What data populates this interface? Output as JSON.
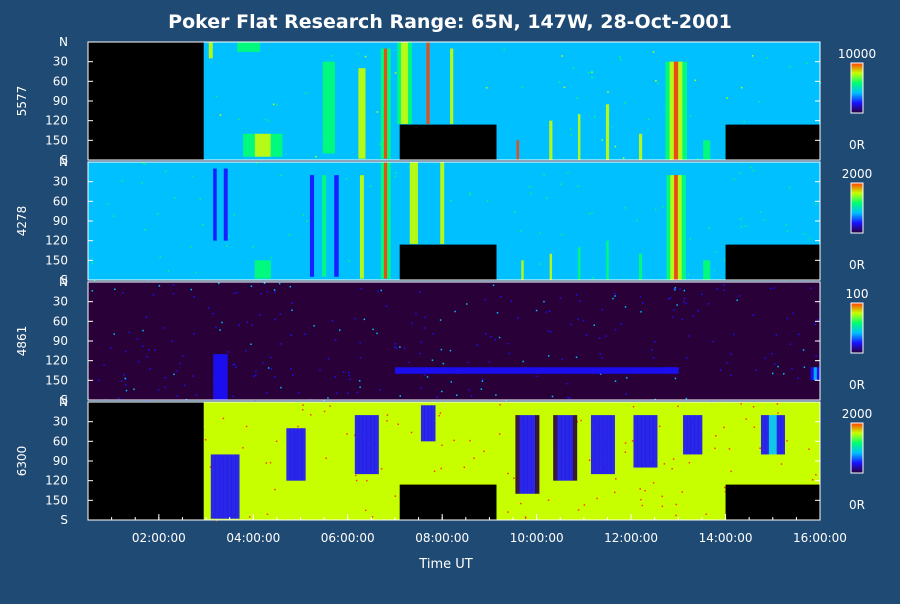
{
  "chart_data": {
    "type": "heatmap",
    "title": "Poker Flat Research Range: 65N, 147W, 28-Oct-2001",
    "xlabel": "Time UT",
    "x_range_hours": [
      0.5,
      16.0
    ],
    "x_ticks": [
      {
        "hour": 2,
        "label": "02:00:00"
      },
      {
        "hour": 4,
        "label": "04:00:00"
      },
      {
        "hour": 6,
        "label": "06:00:00"
      },
      {
        "hour": 8,
        "label": "08:00:00"
      },
      {
        "hour": 10,
        "label": "10:00:00"
      },
      {
        "hour": 12,
        "label": "12:00:00"
      },
      {
        "hour": 14,
        "label": "14:00:00"
      },
      {
        "hour": 16,
        "label": "16:00:00"
      }
    ],
    "y_range_deg": [
      0,
      180
    ],
    "y_ticks": [
      {
        "deg": 0,
        "label": "N"
      },
      {
        "deg": 30,
        "label": "30"
      },
      {
        "deg": 60,
        "label": "60"
      },
      {
        "deg": 90,
        "label": "90"
      },
      {
        "deg": 120,
        "label": "120"
      },
      {
        "deg": 150,
        "label": "150"
      },
      {
        "deg": 180,
        "label": "S"
      }
    ],
    "colorscale": [
      "#2a0038",
      "#1a10ff",
      "#00c0ff",
      "#00ff70",
      "#c8ff00",
      "#ff4000"
    ],
    "panels": [
      {
        "name": "5577",
        "cbar_max": "10000",
        "cbar_min": "0R",
        "level_pct": 45,
        "noise_pct": 6,
        "no_data": [
          {
            "from": 0.5,
            "to": 2.95,
            "deg_from": 0,
            "deg_to": 180
          },
          {
            "from": 7.1,
            "to": 9.15,
            "deg_from": 126,
            "deg_to": 180
          },
          {
            "from": 14.0,
            "to": 16.0,
            "deg_from": 126,
            "deg_to": 180
          }
        ],
        "features": [
          {
            "t": 3.1,
            "w": 0.25,
            "deg_from": 0,
            "deg_to": 25,
            "intensity": 0.85
          },
          {
            "t": 3.9,
            "w": 0.8,
            "deg_from": 0,
            "deg_to": 15,
            "intensity": 0.7
          },
          {
            "t": 4.2,
            "w": 1.0,
            "deg_from": 140,
            "deg_to": 175,
            "intensity": 0.8
          },
          {
            "t": 5.6,
            "w": 0.6,
            "deg_from": 30,
            "deg_to": 170,
            "intensity": 0.6
          },
          {
            "t": 6.3,
            "w": 0.3,
            "deg_from": 40,
            "deg_to": 178,
            "intensity": 0.9
          },
          {
            "t": 6.8,
            "w": 0.2,
            "deg_from": 10,
            "deg_to": 178,
            "intensity": 1.0
          },
          {
            "t": 7.2,
            "w": 0.3,
            "deg_from": 0,
            "deg_to": 125,
            "intensity": 1.0
          },
          {
            "t": 7.7,
            "w": 0.2,
            "deg_from": 0,
            "deg_to": 125,
            "intensity": 0.9
          },
          {
            "t": 8.2,
            "w": 0.2,
            "deg_from": 10,
            "deg_to": 125,
            "intensity": 0.7
          },
          {
            "t": 9.6,
            "w": 0.15,
            "deg_from": 150,
            "deg_to": 180,
            "intensity": 0.9
          },
          {
            "t": 10.3,
            "w": 0.2,
            "deg_from": 120,
            "deg_to": 180,
            "intensity": 0.8
          },
          {
            "t": 10.9,
            "w": 0.15,
            "deg_from": 110,
            "deg_to": 180,
            "intensity": 0.8
          },
          {
            "t": 11.5,
            "w": 0.2,
            "deg_from": 95,
            "deg_to": 180,
            "intensity": 0.75
          },
          {
            "t": 12.2,
            "w": 0.2,
            "deg_from": 140,
            "deg_to": 180,
            "intensity": 0.7
          },
          {
            "t": 12.95,
            "w": 0.45,
            "deg_from": 30,
            "deg_to": 180,
            "intensity": 0.95
          },
          {
            "t": 13.6,
            "w": 0.3,
            "deg_from": 150,
            "deg_to": 180,
            "intensity": 0.7
          }
        ]
      },
      {
        "name": "4278",
        "cbar_max": "2000",
        "cbar_min": "0R",
        "level_pct": 30,
        "noise_pct": 12,
        "no_data": [
          {
            "from": 7.1,
            "to": 9.15,
            "deg_from": 126,
            "deg_to": 180
          },
          {
            "from": 14.0,
            "to": 16.0,
            "deg_from": 126,
            "deg_to": 180
          }
        ],
        "features": [
          {
            "t": 3.3,
            "w": 0.3,
            "deg_from": 10,
            "deg_to": 120,
            "intensity": 0.5
          },
          {
            "t": 4.2,
            "w": 1.2,
            "deg_from": 150,
            "deg_to": 178,
            "intensity": 0.6
          },
          {
            "t": 5.5,
            "w": 0.6,
            "deg_from": 20,
            "deg_to": 175,
            "intensity": 0.5
          },
          {
            "t": 6.3,
            "w": 0.25,
            "deg_from": 20,
            "deg_to": 178,
            "intensity": 0.85
          },
          {
            "t": 6.8,
            "w": 0.2,
            "deg_from": 0,
            "deg_to": 178,
            "intensity": 1.0
          },
          {
            "t": 7.4,
            "w": 0.35,
            "deg_from": 0,
            "deg_to": 125,
            "intensity": 0.9
          },
          {
            "t": 8.0,
            "w": 0.25,
            "deg_from": 0,
            "deg_to": 125,
            "intensity": 0.75
          },
          {
            "t": 9.7,
            "w": 0.15,
            "deg_from": 150,
            "deg_to": 180,
            "intensity": 0.7
          },
          {
            "t": 10.3,
            "w": 0.15,
            "deg_from": 140,
            "deg_to": 180,
            "intensity": 0.7
          },
          {
            "t": 10.9,
            "w": 0.15,
            "deg_from": 130,
            "deg_to": 180,
            "intensity": 0.65
          },
          {
            "t": 11.5,
            "w": 0.15,
            "deg_from": 120,
            "deg_to": 180,
            "intensity": 0.6
          },
          {
            "t": 12.2,
            "w": 0.2,
            "deg_from": 140,
            "deg_to": 180,
            "intensity": 0.6
          },
          {
            "t": 12.95,
            "w": 0.4,
            "deg_from": 20,
            "deg_to": 180,
            "intensity": 0.95
          },
          {
            "t": 13.6,
            "w": 0.3,
            "deg_from": 150,
            "deg_to": 180,
            "intensity": 0.6
          }
        ]
      },
      {
        "name": "4861",
        "cbar_max": "100",
        "cbar_min": "0R",
        "level_pct": 3,
        "noise_pct": 18,
        "no_data": [],
        "features": [
          {
            "t": 3.3,
            "w": 0.3,
            "deg_from": 110,
            "deg_to": 180,
            "intensity": 0.35
          },
          {
            "t": 10.0,
            "w": 6.0,
            "deg_from": 130,
            "deg_to": 140,
            "intensity": 0.25
          },
          {
            "t": 15.9,
            "w": 0.2,
            "deg_from": 130,
            "deg_to": 150,
            "intensity": 0.4
          }
        ]
      },
      {
        "name": "6300",
        "cbar_max": "2000",
        "cbar_min": "0R",
        "level_pct": 88,
        "noise_pct": 8,
        "no_data": [
          {
            "from": 0.5,
            "to": 2.95,
            "deg_from": 0,
            "deg_to": 180
          },
          {
            "from": 7.1,
            "to": 9.15,
            "deg_from": 126,
            "deg_to": 180
          },
          {
            "from": 14.0,
            "to": 16.0,
            "deg_from": 126,
            "deg_to": 180
          }
        ],
        "features": [
          {
            "t": 3.4,
            "w": 0.6,
            "deg_from": 80,
            "deg_to": 178,
            "intensity": 0.25
          },
          {
            "t": 4.9,
            "w": 0.4,
            "deg_from": 40,
            "deg_to": 120,
            "intensity": 0.25
          },
          {
            "t": 6.4,
            "w": 0.5,
            "deg_from": 20,
            "deg_to": 110,
            "intensity": 0.3
          },
          {
            "t": 7.7,
            "w": 0.3,
            "deg_from": 5,
            "deg_to": 60,
            "intensity": 0.3
          },
          {
            "t": 9.8,
            "w": 0.5,
            "deg_from": 20,
            "deg_to": 140,
            "intensity": 0.15
          },
          {
            "t": 10.6,
            "w": 0.5,
            "deg_from": 20,
            "deg_to": 120,
            "intensity": 0.15
          },
          {
            "t": 11.4,
            "w": 0.5,
            "deg_from": 20,
            "deg_to": 110,
            "intensity": 0.2
          },
          {
            "t": 12.3,
            "w": 0.5,
            "deg_from": 20,
            "deg_to": 100,
            "intensity": 0.2
          },
          {
            "t": 13.3,
            "w": 0.4,
            "deg_from": 20,
            "deg_to": 80,
            "intensity": 0.25
          },
          {
            "t": 15.0,
            "w": 0.5,
            "deg_from": 20,
            "deg_to": 80,
            "intensity": 0.4
          }
        ]
      }
    ]
  }
}
